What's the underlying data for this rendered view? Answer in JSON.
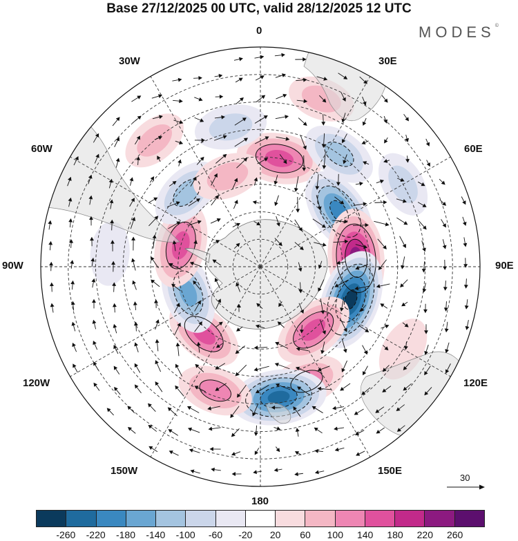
{
  "title": "Base 27/12/2025 00 UTC, valid 28/12/2025 12 UTC",
  "brand": {
    "name": "MODES",
    "mark": "©"
  },
  "longitude_labels": {
    "lon_0": "0",
    "lon_30e": "30E",
    "lon_60e": "60E",
    "lon_90e": "90E",
    "lon_120e": "120E",
    "lon_150e": "150E",
    "lon_180": "180",
    "lon_150w": "150W",
    "lon_120w": "120W",
    "lon_90w": "90W",
    "lon_60w": "60W",
    "lon_30w": "30W"
  },
  "wind_reference": {
    "value": "30"
  },
  "colorbar": {
    "colors": [
      "#0b3a5c",
      "#1f6b9e",
      "#3a88c0",
      "#6aa6d2",
      "#a4c4e0",
      "#cbd6ea",
      "#e9e8f3",
      "#ffffff",
      "#f8dcdf",
      "#f4b7c4",
      "#ee86b3",
      "#e0519d",
      "#c22a8a",
      "#8c1a80",
      "#5c0f6e"
    ],
    "ticks": [
      "-260",
      "-220",
      "-180",
      "-140",
      "-100",
      "-60",
      "-20",
      "20",
      "60",
      "100",
      "140",
      "180",
      "220",
      "260"
    ]
  },
  "anomaly_centers": [
    {
      "lon": 10,
      "lat": -50,
      "value": 170
    },
    {
      "lon": 35,
      "lat": -40,
      "value": -110
    },
    {
      "lon": 55,
      "lat": -55,
      "value": -200
    },
    {
      "lon": 85,
      "lat": -55,
      "value": 250
    },
    {
      "lon": 110,
      "lat": -55,
      "value": -260
    },
    {
      "lon": 140,
      "lat": -60,
      "value": 160
    },
    {
      "lon": 158,
      "lat": -45,
      "value": 120
    },
    {
      "lon": 172,
      "lat": -42,
      "value": -230
    },
    {
      "lon": -160,
      "lat": -42,
      "value": 110
    },
    {
      "lon": -140,
      "lat": -58,
      "value": 140
    },
    {
      "lon": -110,
      "lat": -62,
      "value": -150
    },
    {
      "lon": -75,
      "lat": -60,
      "value": 170
    },
    {
      "lon": -45,
      "lat": -52,
      "value": -110
    },
    {
      "lon": -20,
      "lat": -55,
      "value": 80
    },
    {
      "lon": -12,
      "lat": -38,
      "value": -90
    },
    {
      "lon": 60,
      "lat": -30,
      "value": -60
    },
    {
      "lon": -85,
      "lat": -35,
      "value": -40
    },
    {
      "lon": -40,
      "lat": -30,
      "value": 60
    },
    {
      "lon": 120,
      "lat": -30,
      "value": 50
    },
    {
      "lon": 20,
      "lat": -25,
      "value": 60
    }
  ]
}
